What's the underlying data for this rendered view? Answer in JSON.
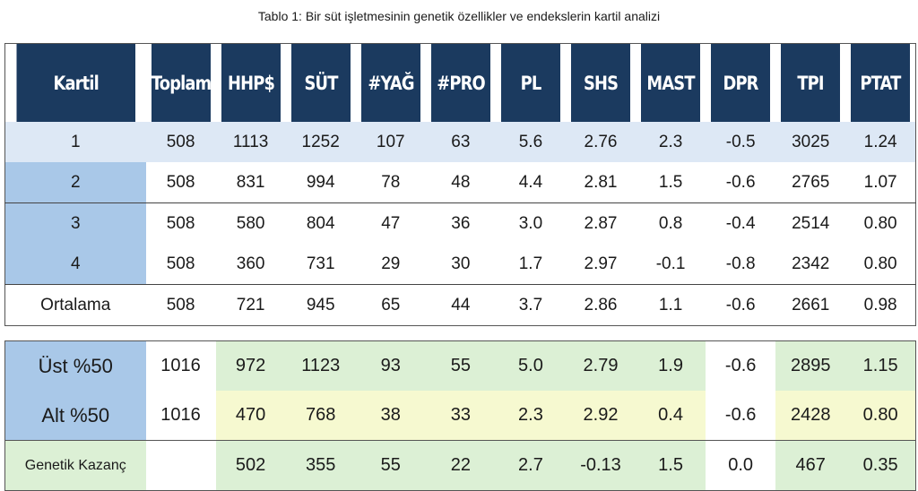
{
  "caption": "Tablo 1: Bir süt işletmesinin genetik özellikler ve endekslerin kartil analizi",
  "headers": [
    "Kartil",
    "Toplam",
    "HHP$",
    "SÜT",
    "#YAĞ",
    "#PRO",
    "PL",
    "SHS",
    "MAST",
    "DPR",
    "TPI",
    "PTAT"
  ],
  "rows": [
    [
      "1",
      "508",
      "1113",
      "1252",
      "107",
      "63",
      "5.6",
      "2.76",
      "2.3",
      "-0.5",
      "3025",
      "1.24"
    ],
    [
      "2",
      "508",
      "831",
      "994",
      "78",
      "48",
      "4.4",
      "2.81",
      "1.5",
      "-0.6",
      "2765",
      "1.07"
    ],
    [
      "3",
      "508",
      "580",
      "804",
      "47",
      "36",
      "3.0",
      "2.87",
      "0.8",
      "-0.4",
      "2514",
      "0.80"
    ],
    [
      "4",
      "508",
      "360",
      "731",
      "29",
      "30",
      "1.7",
      "2.97",
      "-0.1",
      "-0.8",
      "2342",
      "0.80"
    ],
    [
      "Ortalama",
      "508",
      "721",
      "945",
      "65",
      "44",
      "3.7",
      "2.86",
      "1.1",
      "-0.6",
      "2661",
      "0.98"
    ]
  ],
  "summary": [
    [
      "Üst %50",
      "1016",
      "972",
      "1123",
      "93",
      "55",
      "5.0",
      "2.79",
      "1.9",
      "-0.6",
      "2895",
      "1.15"
    ],
    [
      "Alt %50",
      "1016",
      "470",
      "768",
      "38",
      "33",
      "2.3",
      "2.92",
      "0.4",
      "-0.6",
      "2428",
      "0.80"
    ],
    [
      "Genetik Kazanç",
      "",
      "502",
      "355",
      "55",
      "22",
      "2.7",
      "-0.13",
      "1.5",
      "0.0",
      "467",
      "0.35"
    ]
  ],
  "colors": {
    "header": "#1b3a5f",
    "kartil": "#a9c8e8",
    "row1": "#dde8f5",
    "green": "#dcf0d5",
    "yellow": "#f6f9d0"
  }
}
